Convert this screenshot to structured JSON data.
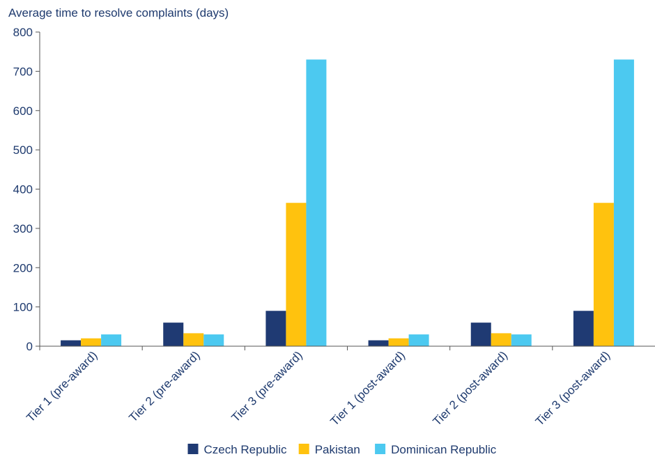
{
  "chart_data": {
    "type": "bar",
    "title": "Average time to resolve complaints (days)",
    "categories": [
      "Tier 1 (pre-award)",
      "Tier 2 (pre-award)",
      "Tier 3 (pre-award)",
      "Tier 1 (post-award)",
      "Tier 2 (post-award)",
      "Tier 3 (post-award)"
    ],
    "series": [
      {
        "name": "Czech Republic",
        "color": "#1f3a73",
        "values": [
          15,
          60,
          90,
          15,
          60,
          90
        ]
      },
      {
        "name": "Pakistan",
        "color": "#ffc20e",
        "values": [
          20,
          33,
          365,
          20,
          33,
          365
        ]
      },
      {
        "name": "Dominican Republic",
        "color": "#4cc9f0",
        "values": [
          30,
          30,
          730,
          30,
          30,
          730
        ]
      }
    ],
    "yticks": [
      0,
      100,
      200,
      300,
      400,
      500,
      600,
      700,
      800
    ],
    "ylim": [
      0,
      800
    ],
    "legend_position": "bottom",
    "grid": false
  }
}
